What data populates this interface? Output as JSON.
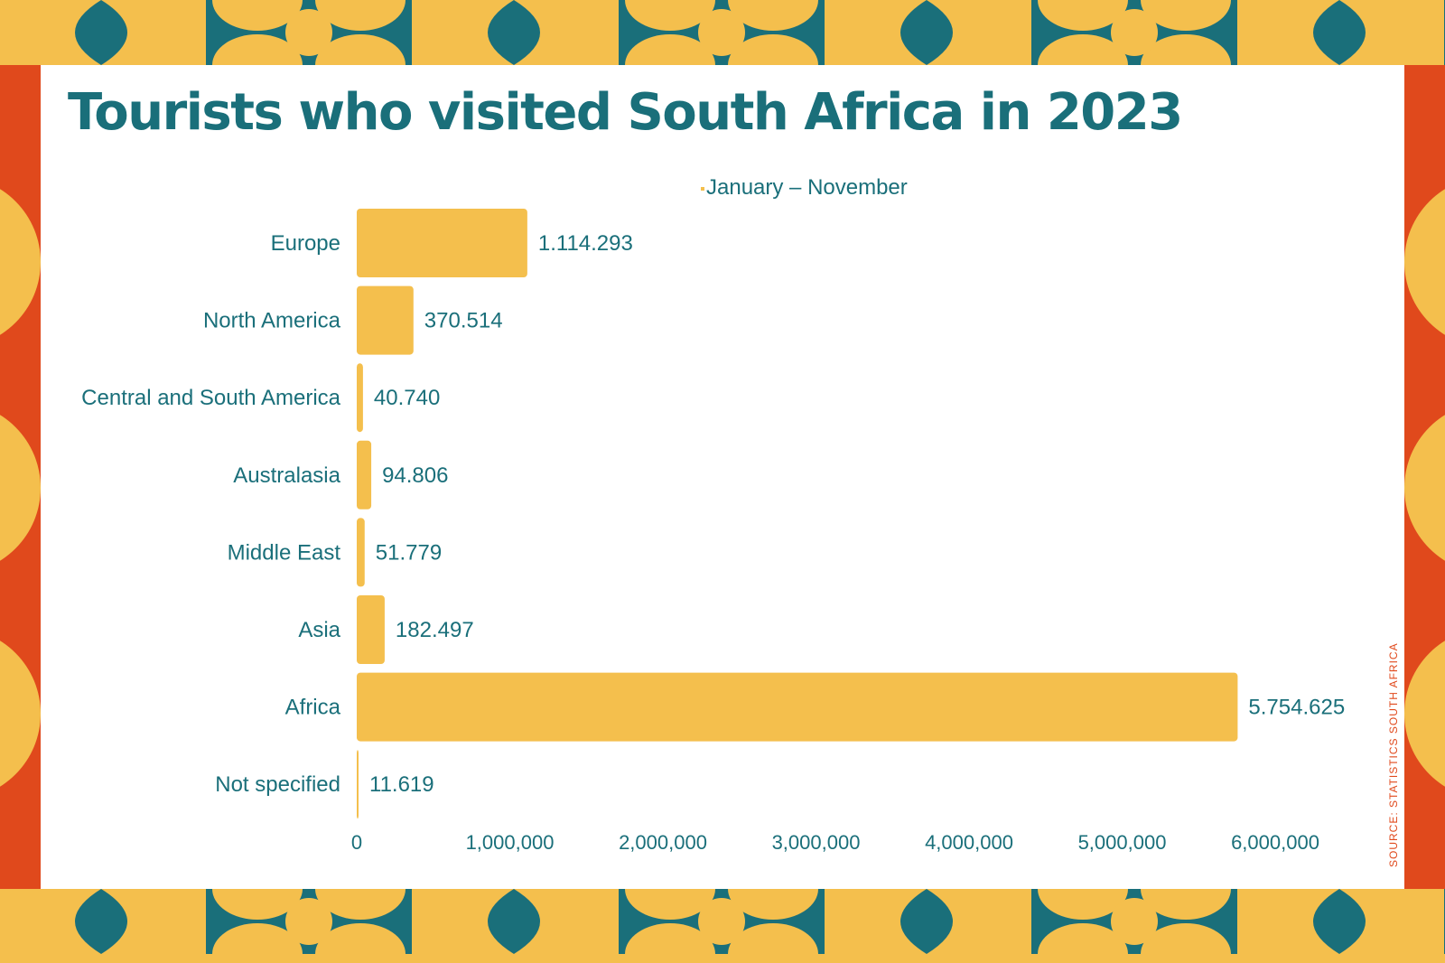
{
  "source": "SOURCE: STATISTICS SOUTH AFRICA",
  "colors": {
    "bar": "#f4bf4d",
    "text": "#1a6f7a",
    "accent": "#e0491c",
    "pattern": "#1a6f7a",
    "background": "#f4bf4d"
  },
  "chart_data": {
    "type": "bar",
    "orientation": "horizontal",
    "title": "Tourists who visited South Africa in 2023",
    "categories": [
      "Europe",
      "North America",
      "Central and South America",
      "Australasia",
      "Middle East",
      "Asia",
      "Africa",
      "Not specified"
    ],
    "series": [
      {
        "name": "January – November",
        "values": [
          1114293,
          370514,
          40740,
          94806,
          51779,
          182497,
          5754625,
          11619
        ],
        "labels": [
          "1.114.293",
          "370.514",
          "40.740",
          "94.806",
          "51.779",
          "182.497",
          "5.754.625",
          "11.619"
        ]
      }
    ],
    "xlim": [
      0,
      6000000
    ],
    "xticks": [
      0,
      1000000,
      2000000,
      3000000,
      4000000,
      5000000,
      6000000
    ],
    "xtick_labels": [
      "0",
      "1,000,000",
      "2,000,000",
      "3,000,000",
      "4,000,000",
      "5,000,000",
      "6,000,000"
    ],
    "xlabel": "",
    "ylabel": "",
    "grid": false,
    "legend_position": "top"
  }
}
